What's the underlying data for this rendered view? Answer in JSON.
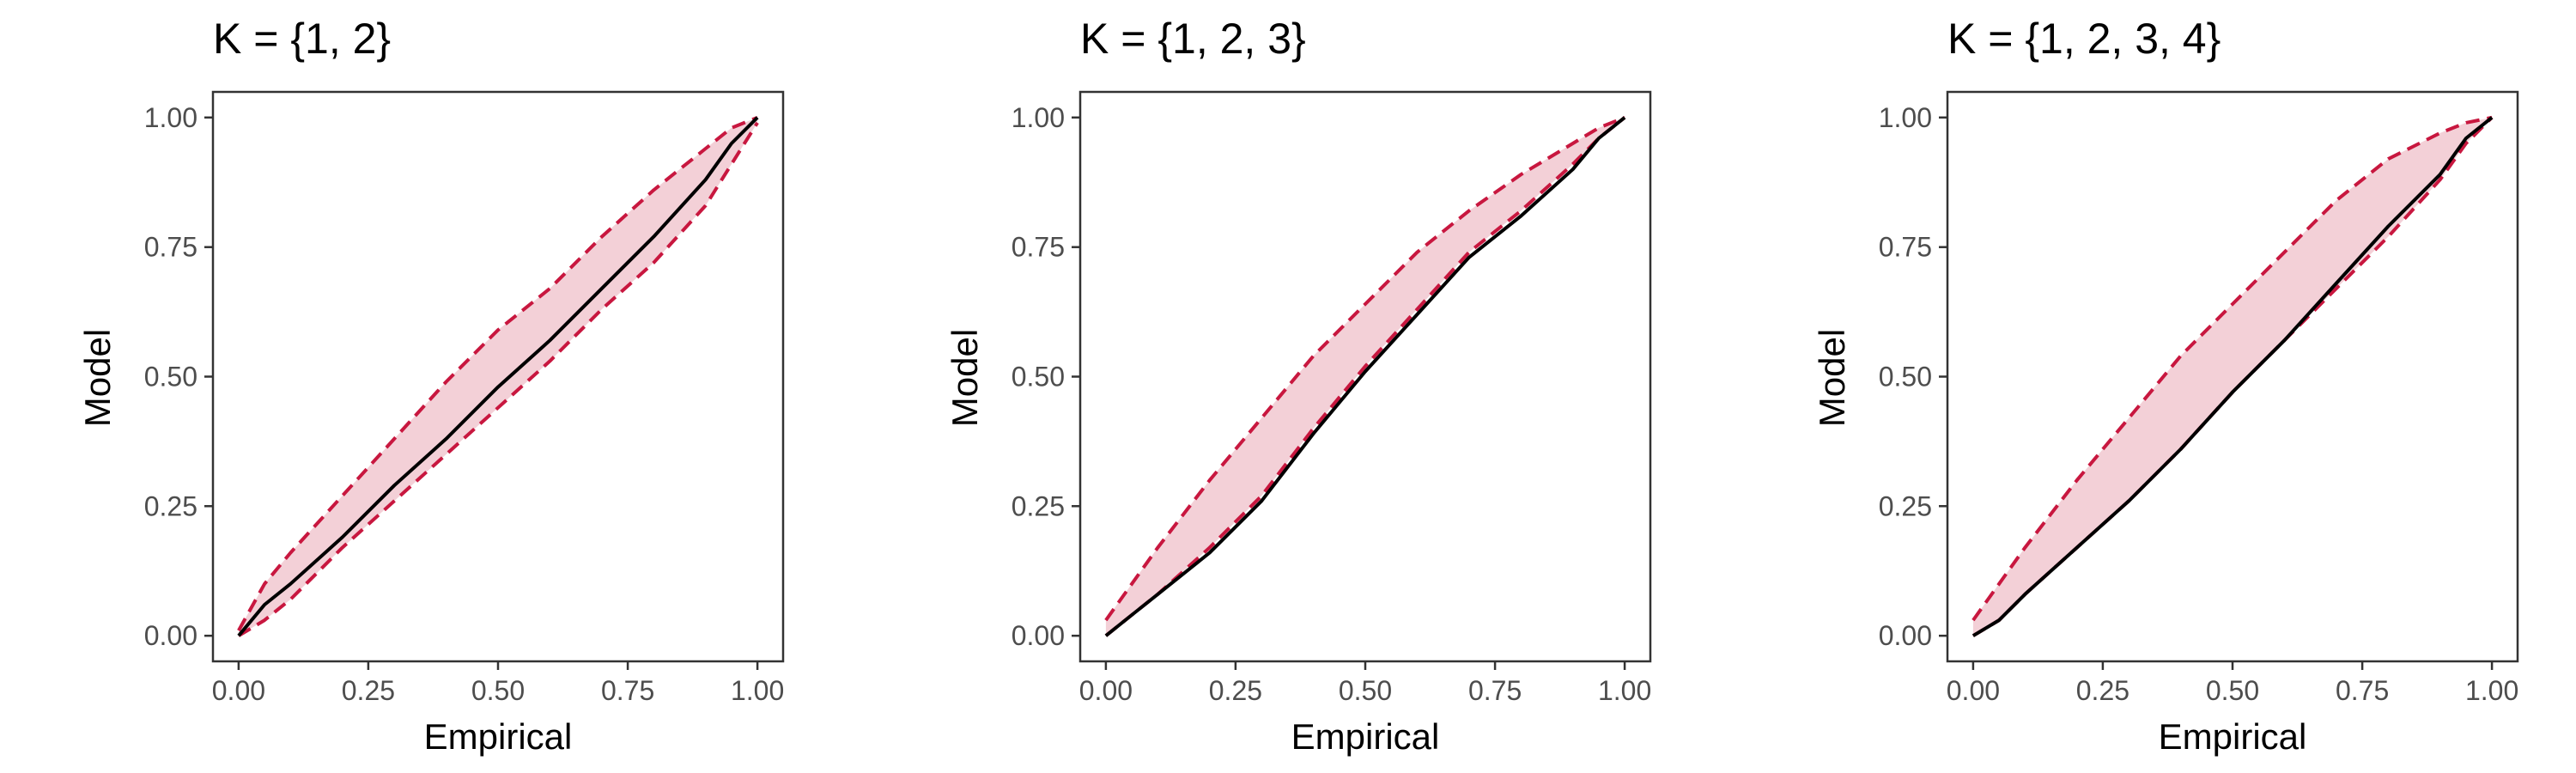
{
  "colors": {
    "band_fill": "#f3d0d7",
    "band_line": "#c8173f",
    "model_line": "#000000"
  },
  "chart_data": [
    {
      "type": "line",
      "title": "K = {1, 2}",
      "xlabel": "Empirical",
      "ylabel": "Model",
      "xlim": [
        0,
        1
      ],
      "ylim": [
        0,
        1
      ],
      "xticks": [
        "0.00",
        "0.25",
        "0.50",
        "0.75",
        "1.00"
      ],
      "yticks": [
        "0.00",
        "0.25",
        "0.50",
        "0.75",
        "1.00"
      ],
      "grid": false,
      "series": [
        {
          "x": [
            0,
            0.05,
            0.1,
            0.2,
            0.3,
            0.4,
            0.5,
            0.6,
            0.7,
            0.8,
            0.9,
            0.95,
            1
          ],
          "y": [
            0,
            0.06,
            0.1,
            0.19,
            0.29,
            0.38,
            0.48,
            0.57,
            0.67,
            0.77,
            0.88,
            0.95,
            1
          ]
        },
        {
          "x": [
            0,
            0.05,
            0.1,
            0.2,
            0.3,
            0.4,
            0.5,
            0.6,
            0.7,
            0.8,
            0.9,
            0.95,
            1
          ],
          "y": [
            0.01,
            0.1,
            0.16,
            0.27,
            0.38,
            0.49,
            0.59,
            0.67,
            0.77,
            0.86,
            0.94,
            0.98,
            1
          ]
        },
        {
          "x": [
            0,
            0.05,
            0.1,
            0.2,
            0.3,
            0.4,
            0.5,
            0.6,
            0.7,
            0.8,
            0.9,
            0.95,
            1
          ],
          "y": [
            0,
            0.03,
            0.07,
            0.17,
            0.26,
            0.35,
            0.44,
            0.53,
            0.63,
            0.72,
            0.83,
            0.91,
            0.99
          ]
        }
      ]
    },
    {
      "type": "line",
      "title": "K = {1, 2, 3}",
      "xlabel": "Empirical",
      "ylabel": "Model",
      "xlim": [
        0,
        1
      ],
      "ylim": [
        0,
        1
      ],
      "xticks": [
        "0.00",
        "0.25",
        "0.50",
        "0.75",
        "1.00"
      ],
      "yticks": [
        "0.00",
        "0.25",
        "0.50",
        "0.75",
        "1.00"
      ],
      "grid": false,
      "series": [
        {
          "x": [
            0,
            0.05,
            0.1,
            0.2,
            0.3,
            0.4,
            0.5,
            0.6,
            0.7,
            0.8,
            0.9,
            0.95,
            1
          ],
          "y": [
            0,
            0.04,
            0.08,
            0.16,
            0.26,
            0.39,
            0.51,
            0.62,
            0.73,
            0.81,
            0.9,
            0.96,
            1
          ]
        },
        {
          "x": [
            0,
            0.05,
            0.1,
            0.2,
            0.3,
            0.4,
            0.5,
            0.6,
            0.7,
            0.8,
            0.9,
            0.95,
            1
          ],
          "y": [
            0.03,
            0.1,
            0.17,
            0.3,
            0.42,
            0.54,
            0.64,
            0.74,
            0.82,
            0.89,
            0.95,
            0.98,
            1
          ]
        },
        {
          "x": [
            0,
            0.05,
            0.1,
            0.2,
            0.3,
            0.4,
            0.5,
            0.6,
            0.7,
            0.8,
            0.9,
            0.95,
            1
          ],
          "y": [
            0,
            0.04,
            0.08,
            0.17,
            0.27,
            0.4,
            0.52,
            0.63,
            0.74,
            0.82,
            0.91,
            0.96,
            1
          ]
        }
      ]
    },
    {
      "type": "line",
      "title": "K = {1, 2, 3, 4}",
      "xlabel": "Empirical",
      "ylabel": "Model",
      "xlim": [
        0,
        1
      ],
      "ylim": [
        0,
        1
      ],
      "xticks": [
        "0.00",
        "0.25",
        "0.50",
        "0.75",
        "1.00"
      ],
      "yticks": [
        "0.00",
        "0.25",
        "0.50",
        "0.75",
        "1.00"
      ],
      "grid": false,
      "series": [
        {
          "x": [
            0,
            0.05,
            0.1,
            0.2,
            0.3,
            0.4,
            0.5,
            0.6,
            0.7,
            0.8,
            0.9,
            0.95,
            1
          ],
          "y": [
            0,
            0.03,
            0.08,
            0.17,
            0.26,
            0.36,
            0.47,
            0.57,
            0.68,
            0.79,
            0.89,
            0.96,
            1
          ]
        },
        {
          "x": [
            0,
            0.05,
            0.1,
            0.2,
            0.3,
            0.4,
            0.5,
            0.6,
            0.7,
            0.8,
            0.9,
            0.95,
            1
          ],
          "y": [
            0.03,
            0.1,
            0.17,
            0.3,
            0.42,
            0.54,
            0.64,
            0.74,
            0.84,
            0.92,
            0.97,
            0.99,
            1
          ]
        },
        {
          "x": [
            0,
            0.05,
            0.1,
            0.2,
            0.3,
            0.4,
            0.5,
            0.6,
            0.7,
            0.8,
            0.9,
            0.95,
            1
          ],
          "y": [
            0,
            0.03,
            0.08,
            0.17,
            0.26,
            0.36,
            0.47,
            0.57,
            0.67,
            0.77,
            0.88,
            0.95,
            1
          ]
        }
      ]
    }
  ]
}
